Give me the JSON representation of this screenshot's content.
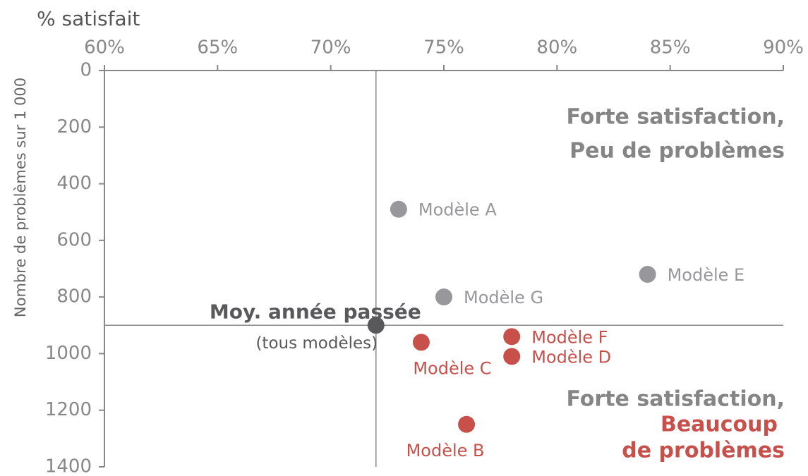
{
  "chart_data": {
    "type": "scatter",
    "x_label": "% satisfait",
    "y_label": "Nombre de problèmes sur 1 000",
    "xlim": [
      60,
      90
    ],
    "xticks": [
      {
        "value": 60,
        "label": "60%"
      },
      {
        "value": 65,
        "label": "65%"
      },
      {
        "value": 70,
        "label": "70%"
      },
      {
        "value": 75,
        "label": "75%"
      },
      {
        "value": 80,
        "label": "80%"
      },
      {
        "value": 85,
        "label": "85%"
      },
      {
        "value": 90,
        "label": "90%"
      }
    ],
    "ylim": [
      0,
      1400
    ],
    "yticks": [
      0,
      200,
      400,
      600,
      800,
      1000,
      1200,
      1400
    ],
    "y_inverted": true,
    "reference_x": 72,
    "reference_y": 900,
    "points": [
      {
        "label": "Modèle A",
        "x": 73,
        "y": 490,
        "color": "#97979c"
      },
      {
        "label": "Modèle G",
        "x": 75,
        "y": 800,
        "color": "#97979c"
      },
      {
        "label": "Modèle E",
        "x": 84,
        "y": 720,
        "color": "#97979c"
      },
      {
        "label": "Moy. année passée",
        "sublabel": "(tous modèles)",
        "x": 72,
        "y": 900,
        "color": "#59595c"
      },
      {
        "label": "Modèle C",
        "x": 74,
        "y": 960,
        "color": "#c8504b"
      },
      {
        "label": "Modèle F",
        "x": 78,
        "y": 940,
        "color": "#c8504b"
      },
      {
        "label": "Modèle D",
        "x": 78,
        "y": 1010,
        "color": "#c8504b"
      },
      {
        "label": "Modèle B",
        "x": 76,
        "y": 1250,
        "color": "#c8504b"
      }
    ],
    "annotations": [
      {
        "text": "Forte satisfaction,",
        "color": "#858585"
      },
      {
        "text": "Peu de problèmes",
        "color": "#858585"
      },
      {
        "text": "Forte satisfaction,",
        "color": "#858585"
      },
      {
        "text": "Beaucoup",
        "color": "#c8504b"
      },
      {
        "text": "de problèmes",
        "color": "#c8504b"
      }
    ]
  }
}
